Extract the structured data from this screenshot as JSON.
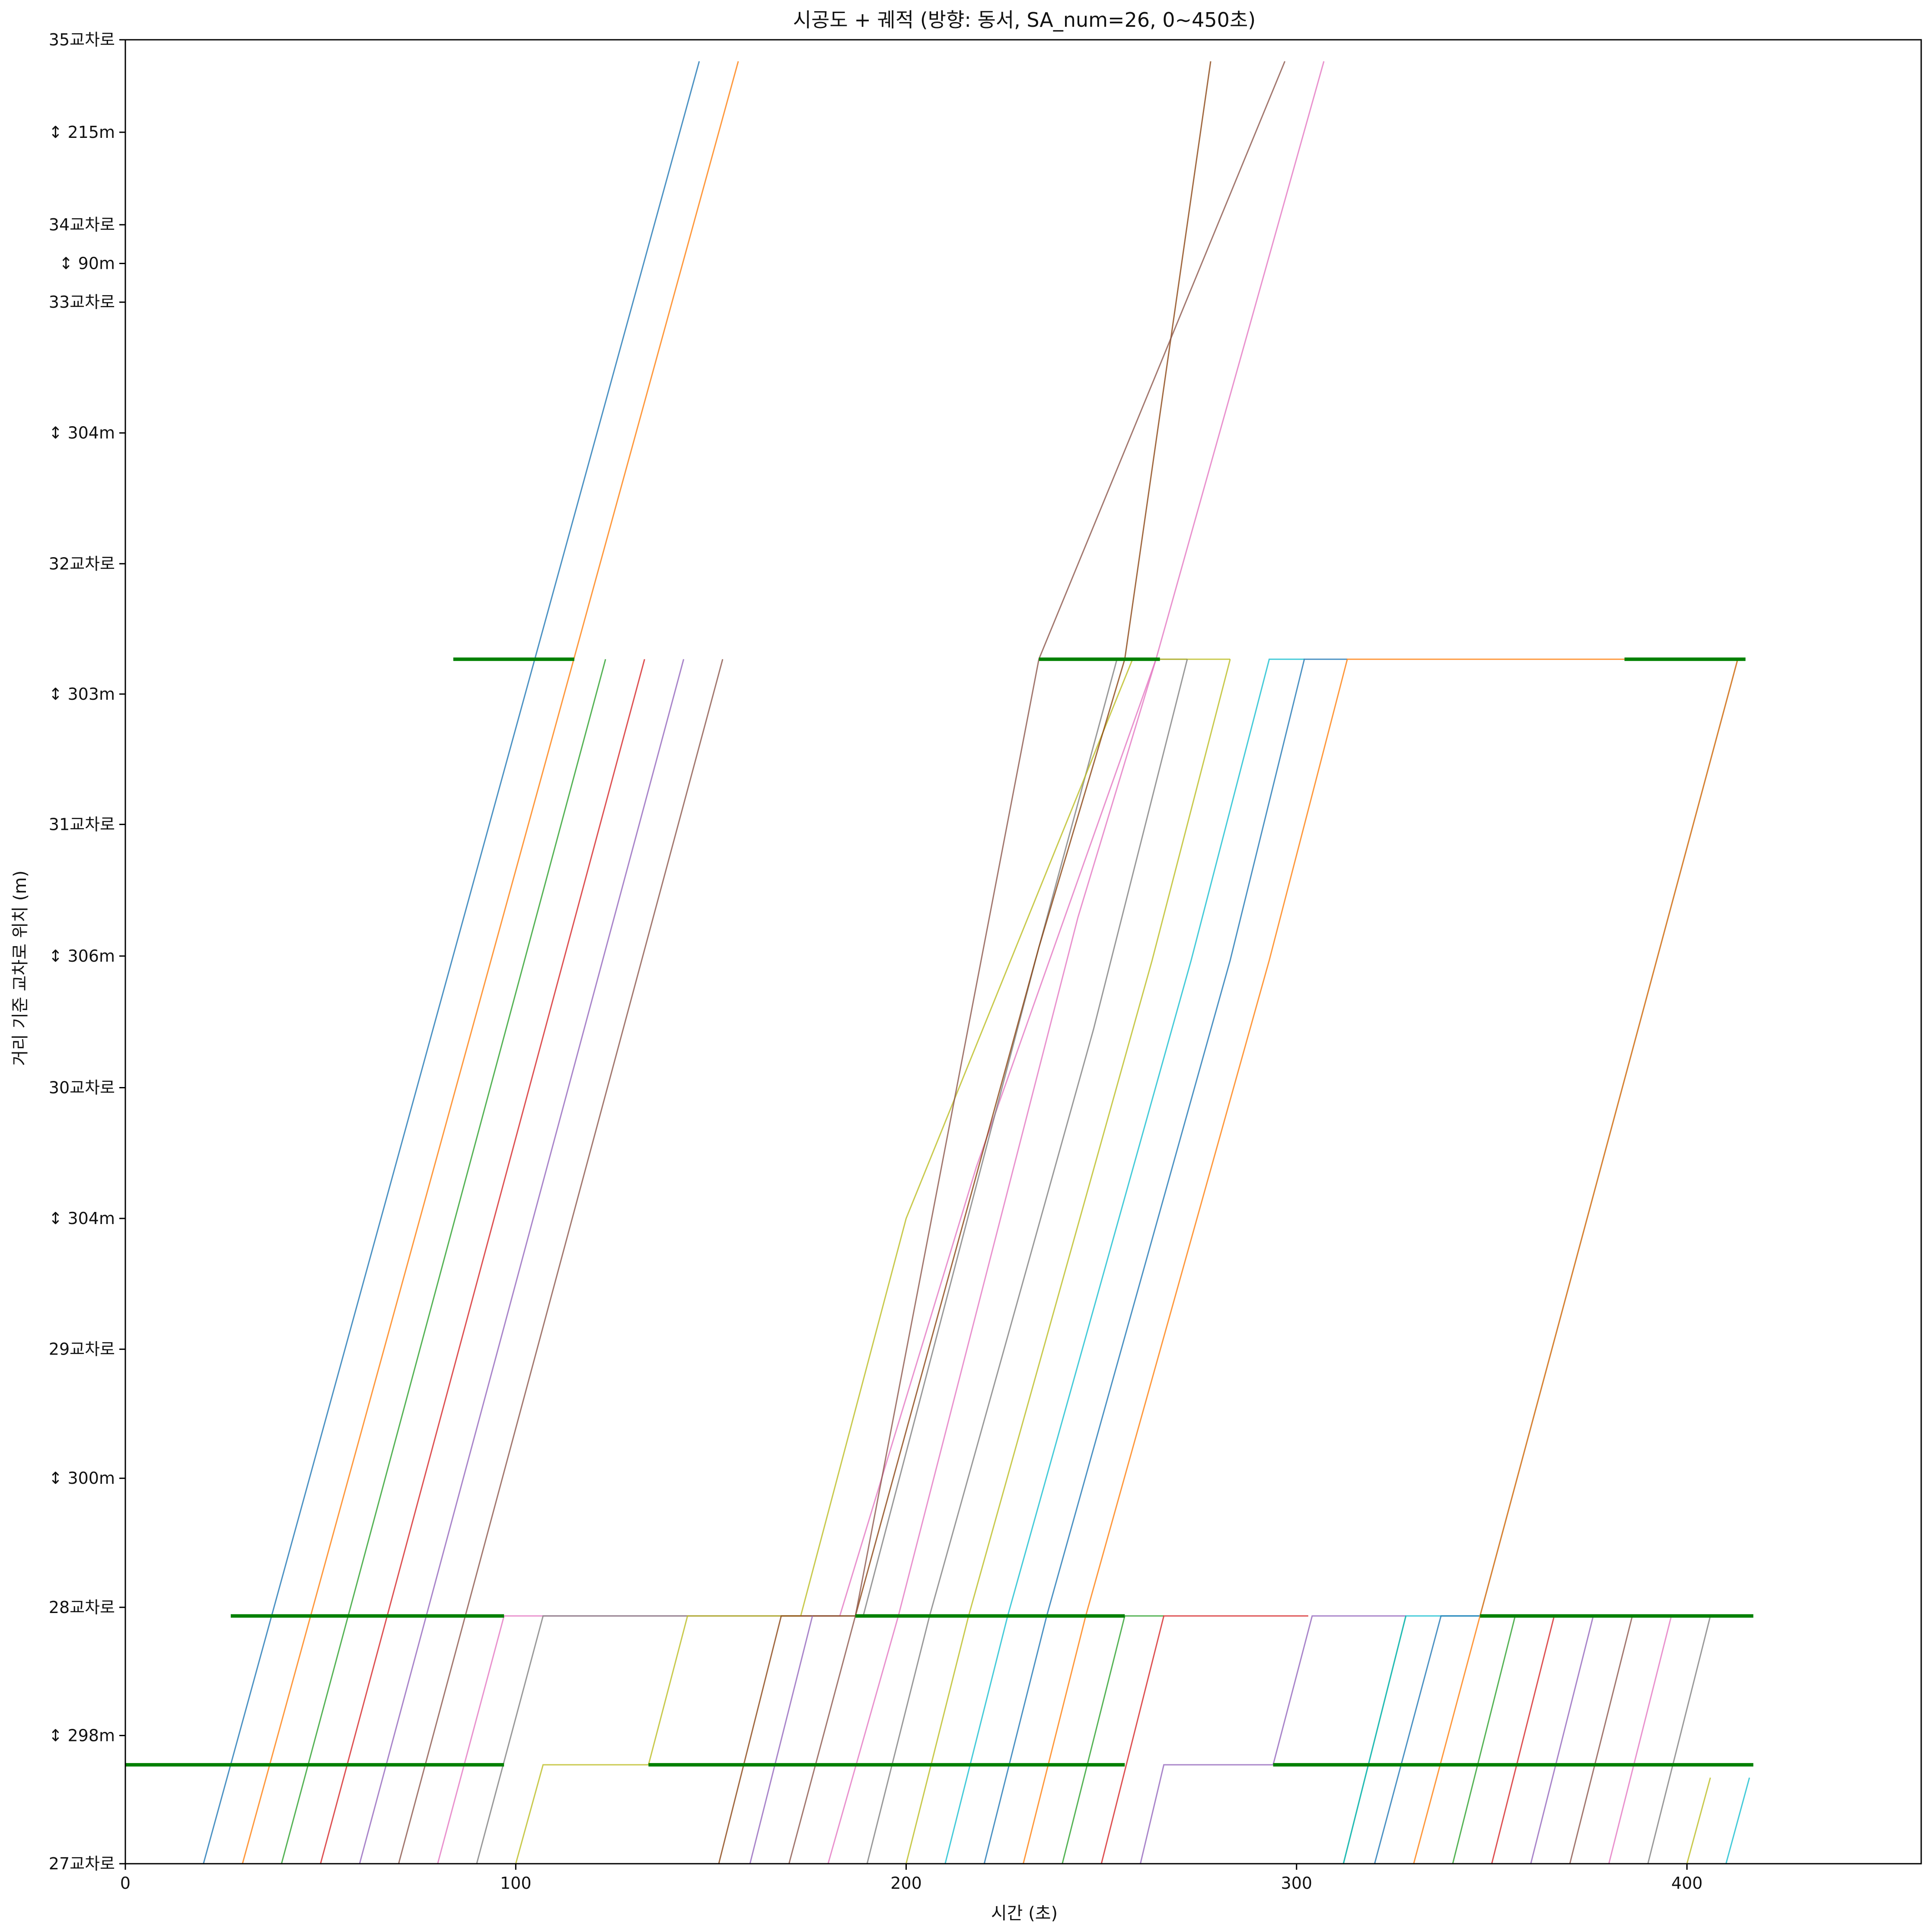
{
  "chart_data": {
    "type": "line",
    "title": "시공도 + 궤적 (방향: 동서, SA_num=26, 0~450초)",
    "xlabel": "시간 (초)",
    "ylabel": "거리 기준 교차로 위치 (m)",
    "xlim": [
      0,
      460
    ],
    "ylim": [
      0,
      4190
    ],
    "xticks": [
      0,
      100,
      200,
      300,
      400
    ],
    "yticks": [
      {
        "label": "27교차로",
        "value": 0
      },
      {
        "label": "↕ 298m",
        "value": 298
      },
      {
        "label": "28교차로",
        "value": 596
      },
      {
        "label": "↕ 300m",
        "value": 896
      },
      {
        "label": "29교차로",
        "value": 1196
      },
      {
        "label": "↕ 304m",
        "value": 1500
      },
      {
        "label": "30교차로",
        "value": 1804
      },
      {
        "label": "↕ 306m",
        "value": 2110
      },
      {
        "label": "31교차로",
        "value": 2416
      },
      {
        "label": "↕ 303m",
        "value": 2719
      },
      {
        "label": "32교차로",
        "value": 3022
      },
      {
        "label": "↕ 304m",
        "value": 3326
      },
      {
        "label": "33교차로",
        "value": 3630
      },
      {
        "label": "↕ 90m",
        "value": 3720
      },
      {
        "label": "34교차로",
        "value": 3810
      },
      {
        "label": "↕ 215m",
        "value": 4025
      },
      {
        "label": "35교차로",
        "value": 4240
      }
    ],
    "grid": false,
    "signal_stop_lines": [
      {
        "y": 230,
        "x_start": 0,
        "x_end": 97
      },
      {
        "y": 230,
        "x_start": 134,
        "x_end": 256
      },
      {
        "y": 230,
        "x_start": 294,
        "x_end": 417
      },
      {
        "y": 576,
        "x_start": 27,
        "x_end": 97
      },
      {
        "y": 576,
        "x_start": 187,
        "x_end": 256
      },
      {
        "y": 576,
        "x_start": 347,
        "x_end": 417
      },
      {
        "y": 2800,
        "x_start": 84,
        "x_end": 115
      },
      {
        "y": 2800,
        "x_start": 234,
        "x_end": 265
      },
      {
        "y": 2800,
        "x_start": 384,
        "x_end": 415
      }
    ],
    "series": [
      {
        "color": "#1f77b4",
        "points": [
          [
            20,
            0
          ],
          [
            147,
            4190
          ]
        ]
      },
      {
        "color": "#ff7f0e",
        "points": [
          [
            30,
            0
          ],
          [
            157,
            4190
          ]
        ]
      },
      {
        "color": "#2ca02c",
        "points": [
          [
            40,
            0
          ],
          [
            123,
            2800
          ]
        ]
      },
      {
        "color": "#d62728",
        "points": [
          [
            50,
            0
          ],
          [
            133,
            2800
          ]
        ]
      },
      {
        "color": "#9467bd",
        "points": [
          [
            60,
            0
          ],
          [
            143,
            2800
          ]
        ]
      },
      {
        "color": "#8c564b",
        "points": [
          [
            70,
            0
          ],
          [
            153,
            2800
          ]
        ]
      },
      {
        "color": "#e377c2",
        "points": [
          [
            80,
            0
          ],
          [
            97,
            576
          ],
          [
            153,
            576
          ],
          [
            183,
            576
          ],
          [
            218,
            1620
          ],
          [
            264,
            2800
          ],
          [
            307,
            4190
          ]
        ]
      },
      {
        "color": "#7f7f7f",
        "points": [
          [
            90,
            0
          ],
          [
            107,
            576
          ],
          [
            153,
            576
          ],
          [
            189,
            576
          ],
          [
            234,
            2130
          ],
          [
            254,
            2800
          ],
          [
            272,
            2800
          ]
        ]
      },
      {
        "color": "#bcbd22",
        "points": [
          [
            100,
            0
          ],
          [
            107,
            230
          ],
          [
            134,
            230
          ],
          [
            144,
            576
          ],
          [
            173,
            576
          ],
          [
            200,
            1500
          ],
          [
            258,
            2800
          ],
          [
            283,
            2800
          ]
        ]
      },
      {
        "color": "#8b4513",
        "points": [
          [
            152,
            0
          ],
          [
            168,
            576
          ],
          [
            187,
            576
          ],
          [
            234,
            2130
          ],
          [
            256,
            2800
          ],
          [
            278,
            4190
          ]
        ]
      },
      {
        "color": "#9467bd",
        "points": [
          [
            160,
            0
          ],
          [
            176,
            576
          ]
        ]
      },
      {
        "color": "#8c564b",
        "points": [
          [
            170,
            0
          ],
          [
            187,
            576
          ],
          [
            234,
            2800
          ],
          [
            297,
            4190
          ]
        ]
      },
      {
        "color": "#e377c2",
        "points": [
          [
            180,
            0
          ],
          [
            198,
            576
          ],
          [
            244,
            2200
          ],
          [
            264,
            2800
          ]
        ]
      },
      {
        "color": "#7f7f7f",
        "points": [
          [
            190,
            0
          ],
          [
            206,
            576
          ],
          [
            248,
            1940
          ],
          [
            272,
            2800
          ]
        ]
      },
      {
        "color": "#bcbd22",
        "points": [
          [
            200,
            0
          ],
          [
            216,
            576
          ],
          [
            263,
            2100
          ],
          [
            283,
            2800
          ]
        ]
      },
      {
        "color": "#17becf",
        "points": [
          [
            210,
            0
          ],
          [
            226,
            576
          ],
          [
            273,
            2100
          ],
          [
            293,
            2800
          ],
          [
            302,
            2800
          ]
        ]
      },
      {
        "color": "#1f77b4",
        "points": [
          [
            220,
            0
          ],
          [
            236,
            576
          ],
          [
            283,
            2100
          ],
          [
            302,
            2800
          ],
          [
            313,
            2800
          ]
        ]
      },
      {
        "color": "#ff7f0e",
        "points": [
          [
            230,
            0
          ],
          [
            246,
            576
          ],
          [
            293,
            2100
          ],
          [
            313,
            2800
          ],
          [
            384,
            2800
          ]
        ]
      },
      {
        "color": "#2ca02c",
        "points": [
          [
            240,
            0
          ],
          [
            256,
            576
          ],
          [
            266,
            576
          ]
        ]
      },
      {
        "color": "#d62728",
        "points": [
          [
            250,
            0
          ],
          [
            266,
            576
          ],
          [
            303,
            576
          ]
        ]
      },
      {
        "color": "#9467bd",
        "points": [
          [
            260,
            0
          ],
          [
            266,
            230
          ],
          [
            294,
            230
          ],
          [
            304,
            576
          ],
          [
            328,
            576
          ]
        ]
      },
      {
        "color": "#2ca02c",
        "points": [
          [
            312,
            0
          ],
          [
            328,
            576
          ]
        ]
      },
      {
        "color": "#17becf",
        "points": [
          [
            312,
            0
          ],
          [
            328,
            576
          ],
          [
            347,
            576
          ]
        ]
      },
      {
        "color": "#1f77b4",
        "points": [
          [
            320,
            0
          ],
          [
            337,
            576
          ],
          [
            347,
            576
          ],
          [
            413,
            2800
          ]
        ]
      },
      {
        "color": "#ff7f0e",
        "points": [
          [
            330,
            0
          ],
          [
            347,
            576
          ],
          [
            413,
            2800
          ]
        ]
      },
      {
        "color": "#2ca02c",
        "points": [
          [
            340,
            0
          ],
          [
            356,
            576
          ]
        ]
      },
      {
        "color": "#d62728",
        "points": [
          [
            350,
            0
          ],
          [
            366,
            576
          ]
        ]
      },
      {
        "color": "#9467bd",
        "points": [
          [
            360,
            0
          ],
          [
            376,
            576
          ]
        ]
      },
      {
        "color": "#8c564b",
        "points": [
          [
            370,
            0
          ],
          [
            386,
            576
          ]
        ]
      },
      {
        "color": "#e377c2",
        "points": [
          [
            380,
            0
          ],
          [
            396,
            576
          ]
        ]
      },
      {
        "color": "#7f7f7f",
        "points": [
          [
            390,
            0
          ],
          [
            406,
            576
          ]
        ]
      },
      {
        "color": "#bcbd22",
        "points": [
          [
            400,
            0
          ],
          [
            406,
            200
          ]
        ]
      },
      {
        "color": "#17becf",
        "points": [
          [
            410,
            0
          ],
          [
            416,
            200
          ]
        ]
      }
    ]
  }
}
